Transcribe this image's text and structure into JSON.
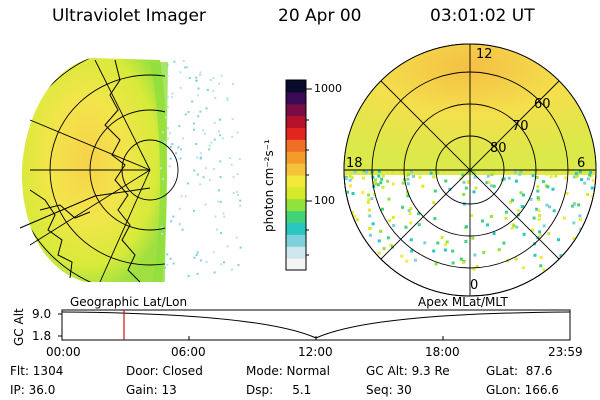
{
  "header": {
    "title": "Ultraviolet Imager",
    "date": "20 Apr 00",
    "time": "03:01:02 UT"
  },
  "colorbar": {
    "unit": "photon cm⁻²s⁻¹",
    "ticks": [
      "1000",
      "100"
    ],
    "colors": [
      "#f4f4f4",
      "#cfe8ee",
      "#7fd0dc",
      "#29c7c0",
      "#41d27a",
      "#8fe33a",
      "#d4ea2a",
      "#f2e93a",
      "#f6c23a",
      "#f29b2b",
      "#ee6f25",
      "#e3251f",
      "#b5122a",
      "#7a0c45",
      "#3a0a55",
      "#0a0a2a"
    ]
  },
  "polar_plot": {
    "lat_labels": [
      "60",
      "70",
      "80"
    ],
    "mlt_labels": {
      "top": "12",
      "bottom": "0",
      "left": "18",
      "right": "6"
    }
  },
  "timeline": {
    "left_caption": "Geographic Lat/Lon",
    "right_caption": "Apex MLat/MLT",
    "axis_label": "GC Alt",
    "y_ticks": [
      "9.0",
      "1.8"
    ],
    "x_ticks": [
      "00:00",
      "06:00",
      "12:00",
      "18:00",
      "23:59"
    ],
    "marker_time": "03:01"
  },
  "info": {
    "flt": "Flt: 1304",
    "ip": "IP: 36.0",
    "door": "Door: Closed",
    "gain": "Gain: 13",
    "mode": "Mode: Normal",
    "dsp": "Dsp:     5.1",
    "gcalt": "GC Alt: 9.3 Re",
    "seq": "Seq: 30",
    "glat": "GLat:  87.6",
    "glon": "GLon: 166.6"
  }
}
